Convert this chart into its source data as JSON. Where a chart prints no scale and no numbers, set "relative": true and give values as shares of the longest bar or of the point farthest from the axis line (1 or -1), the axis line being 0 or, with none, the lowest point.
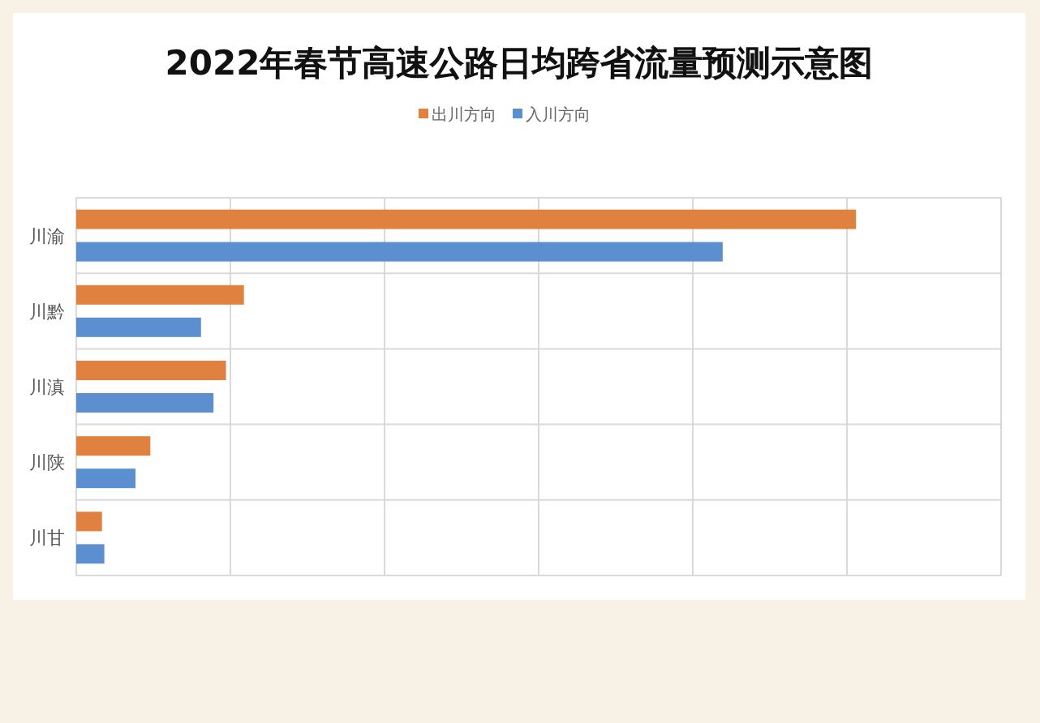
{
  "chart_data": {
    "type": "bar",
    "orientation": "horizontal",
    "relative": true,
    "title": "2022年春节高速公路日均跨省流量预测示意图",
    "categories": [
      "川渝",
      "川黔",
      "川滇",
      "川陕",
      "川甘"
    ],
    "series": [
      {
        "name": "出川方向",
        "color": "#e0813f",
        "values": [
          1,
          0.215,
          0.192,
          0.095,
          0.033
        ]
      },
      {
        "name": "入川方向",
        "color": "#5b8fcf",
        "values": [
          0.829,
          0.16,
          0.176,
          0.076,
          0.036
        ]
      }
    ],
    "legend": "top",
    "grid": true
  }
}
